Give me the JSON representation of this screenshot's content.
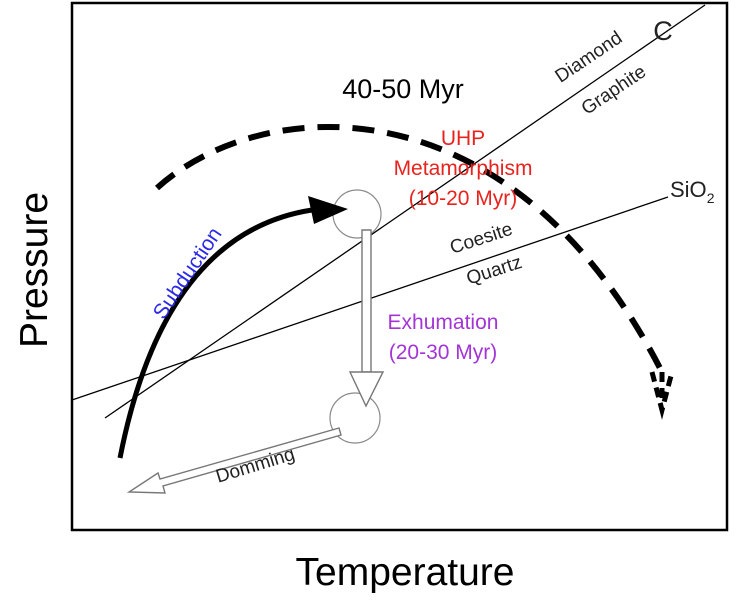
{
  "axes": {
    "x_label": "Temperature",
    "y_label": "Pressure"
  },
  "reaction_lines": {
    "carbon": {
      "phase_above": "Diamond",
      "phase_below": "Graphite",
      "end_label": "C"
    },
    "silica": {
      "phase_above": "Coesite",
      "phase_below": "Quartz",
      "end_label": "SiO",
      "end_label_sub": "2"
    }
  },
  "paths": {
    "overall": {
      "label": "40-50 Myr"
    },
    "subduction": {
      "label": "Subduction",
      "color": "#2a2ae8"
    },
    "uhp": {
      "line1": "UHP",
      "line2": "Metamorphism",
      "line3": "(10-20 Myr)",
      "color": "#e8231e"
    },
    "exhumation": {
      "line1": "Exhumation",
      "line2": "(20-30 Myr)",
      "color": "#a335d6"
    },
    "domming": {
      "label": "Domming"
    }
  }
}
